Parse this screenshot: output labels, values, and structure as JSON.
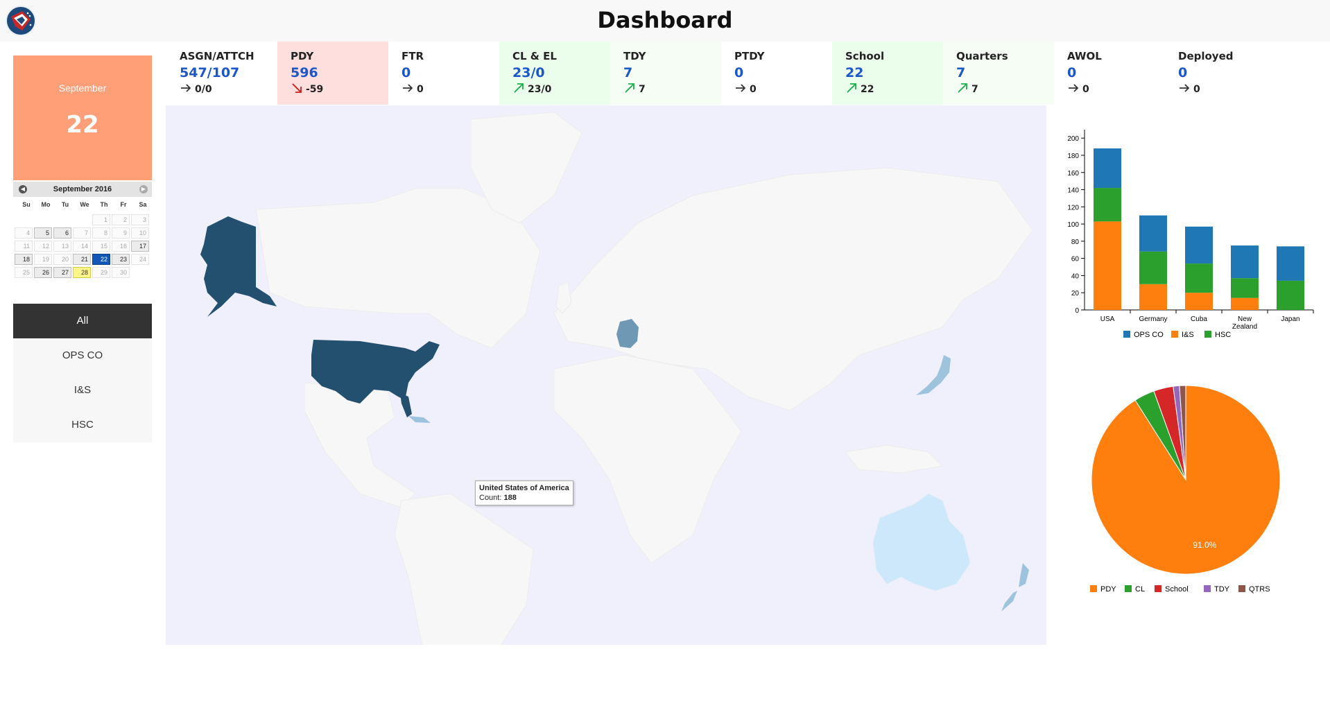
{
  "header": {
    "title": "Dashboard",
    "logo_icon": "unit-crest-logo"
  },
  "date_tile": {
    "month": "September",
    "day": "22",
    "color": "#ff9f78"
  },
  "calendar": {
    "title": "September 2016",
    "dow": [
      "Su",
      "Mo",
      "Tu",
      "We",
      "Th",
      "Fr",
      "Sa"
    ],
    "lead_blanks": 4,
    "days": [
      {
        "d": "1"
      },
      {
        "d": "2"
      },
      {
        "d": "3"
      },
      {
        "d": "4"
      },
      {
        "d": "5",
        "s": "active"
      },
      {
        "d": "6",
        "s": "active"
      },
      {
        "d": "7"
      },
      {
        "d": "8"
      },
      {
        "d": "9"
      },
      {
        "d": "10"
      },
      {
        "d": "11"
      },
      {
        "d": "12"
      },
      {
        "d": "13"
      },
      {
        "d": "14"
      },
      {
        "d": "15"
      },
      {
        "d": "16"
      },
      {
        "d": "17",
        "s": "active"
      },
      {
        "d": "18",
        "s": "active"
      },
      {
        "d": "19"
      },
      {
        "d": "20"
      },
      {
        "d": "21",
        "s": "active"
      },
      {
        "d": "22",
        "s": "selected"
      },
      {
        "d": "23",
        "s": "active"
      },
      {
        "d": "24"
      },
      {
        "d": "25"
      },
      {
        "d": "26",
        "s": "active"
      },
      {
        "d": "27",
        "s": "active"
      },
      {
        "d": "28",
        "s": "today"
      },
      {
        "d": "29"
      },
      {
        "d": "30"
      }
    ]
  },
  "units": {
    "items": [
      "All",
      "OPS CO",
      "I&S",
      "HSC"
    ],
    "active": "All"
  },
  "stats": [
    {
      "label": "ASGN/ATTCH",
      "value": "547/107",
      "trend": "flat",
      "delta": "0/0",
      "bg": "#ffffff"
    },
    {
      "label": "PDY",
      "value": "596",
      "trend": "down",
      "delta": "-59",
      "bg": "#ffdede"
    },
    {
      "label": "FTR",
      "value": "0",
      "trend": "flat",
      "delta": "0",
      "bg": "#ffffff"
    },
    {
      "label": "CL & EL",
      "value": "23/0",
      "trend": "up",
      "delta": "23/0",
      "bg": "#ebfdeb"
    },
    {
      "label": "TDY",
      "value": "7",
      "trend": "up",
      "delta": "7",
      "bg": "#f5fdf5"
    },
    {
      "label": "PTDY",
      "value": "0",
      "trend": "flat",
      "delta": "0",
      "bg": "#ffffff"
    },
    {
      "label": "School",
      "value": "22",
      "trend": "up",
      "delta": "22",
      "bg": "#ebfdeb"
    },
    {
      "label": "Quarters",
      "value": "7",
      "trend": "up",
      "delta": "7",
      "bg": "#f5fdf5"
    },
    {
      "label": "AWOL",
      "value": "0",
      "trend": "flat",
      "delta": "0",
      "bg": "#ffffff"
    },
    {
      "label": "Deployed",
      "value": "0",
      "trend": "flat",
      "delta": "0",
      "bg": "#ffffff"
    }
  ],
  "map": {
    "tooltip": {
      "country": "United States of America",
      "count_label": "Count:",
      "count": "188"
    },
    "colors": {
      "background": "#f0f0fc",
      "land": "#f7f7f7",
      "usa": "#24506f",
      "germany": "#6f98b5",
      "light_blue": "#9dc3dd",
      "australia": "#cde8fa"
    }
  },
  "chart_data": [
    {
      "type": "bar",
      "stacked": true,
      "categories": [
        "USA",
        "Germany",
        "Cuba",
        "New Zealand",
        "Japan"
      ],
      "series": [
        {
          "name": "OPS CO",
          "color": "#1f77b4",
          "values": [
            46,
            42,
            43,
            38,
            40
          ]
        },
        {
          "name": "I&S",
          "color": "#ff7f0e",
          "values": [
            103,
            30,
            20,
            14,
            0
          ]
        },
        {
          "name": "HSC",
          "color": "#2ca02c",
          "values": [
            39,
            38,
            34,
            23,
            34
          ]
        }
      ],
      "stack_order": [
        "I&S",
        "HSC",
        "OPS CO"
      ],
      "yticks": [
        0,
        20,
        40,
        60,
        80,
        100,
        120,
        140,
        160,
        180,
        200
      ],
      "ylim": [
        0,
        205
      ],
      "legend_position": "bottom"
    },
    {
      "type": "pie",
      "slices": [
        {
          "label": "PDY",
          "value": 596,
          "color": "#ff7f0e"
        },
        {
          "label": "CL",
          "value": 23,
          "color": "#2ca02c"
        },
        {
          "label": "School",
          "value": 22,
          "color": "#d62728"
        },
        {
          "label": "TDY",
          "value": 7,
          "color": "#9467bd"
        },
        {
          "label": "QTRS",
          "value": 7,
          "color": "#8c564b"
        }
      ],
      "data_label": "91.0%",
      "legend_position": "bottom"
    }
  ]
}
